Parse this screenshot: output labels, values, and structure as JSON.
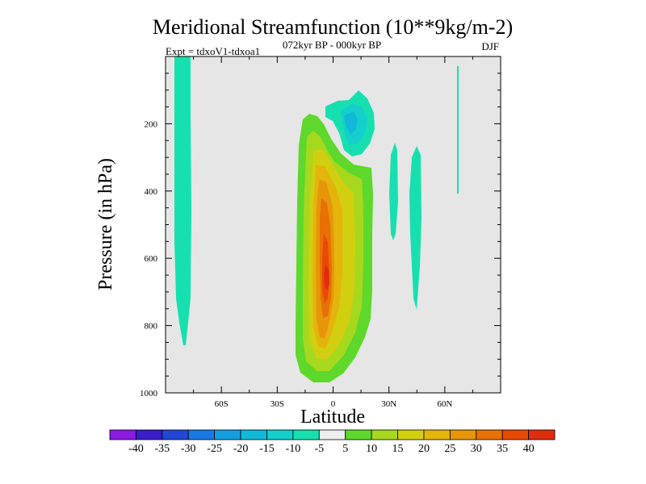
{
  "chart_data": {
    "type": "contour",
    "title": "Meridional Streamfunction (10**9kg/m-2)",
    "experiment": "Expt = tdxoV1-tdxoa1",
    "period": "072kyr BP - 000kyr BP",
    "season": "DJF",
    "xlabel": "Latitude",
    "ylabel": "Pressure (in hPa)",
    "xlim": [
      -90,
      90
    ],
    "ylim": [
      1000,
      0
    ],
    "x_ticks": [
      {
        "value": -60,
        "label": "60S"
      },
      {
        "value": -30,
        "label": "30S"
      },
      {
        "value": 0,
        "label": "0"
      },
      {
        "value": 30,
        "label": "30N"
      },
      {
        "value": 60,
        "label": "60N"
      }
    ],
    "y_ticks": [
      {
        "value": 200,
        "label": "200"
      },
      {
        "value": 400,
        "label": "400"
      },
      {
        "value": 600,
        "label": "600"
      },
      {
        "value": 800,
        "label": "800"
      },
      {
        "value": 1000,
        "label": "1000"
      }
    ],
    "levels": [
      {
        "label": "-40",
        "color": "#8a1ae0"
      },
      {
        "label": "-35",
        "color": "#3a1cc8"
      },
      {
        "label": "-30",
        "color": "#2246d6"
      },
      {
        "label": "-25",
        "color": "#1a78e6"
      },
      {
        "label": "-20",
        "color": "#159fe0"
      },
      {
        "label": "-15",
        "color": "#12b8d8"
      },
      {
        "label": "-10",
        "color": "#14cfcb"
      },
      {
        "label": "-5",
        "color": "#17e0b0"
      },
      {
        "label": "5",
        "color": "#eeeeee"
      },
      {
        "label": "10",
        "color": "#5ed82a"
      },
      {
        "label": "15",
        "color": "#a6d81e"
      },
      {
        "label": "20",
        "color": "#d2cf10"
      },
      {
        "label": "25",
        "color": "#e4b40c"
      },
      {
        "label": "30",
        "color": "#e69608"
      },
      {
        "label": "35",
        "color": "#e87004"
      },
      {
        "label": "40",
        "color": "#e84a06"
      },
      {
        "label": "",
        "color": "#de2e0e"
      }
    ],
    "features": [
      {
        "name": "southern-polar-cell",
        "lat_range": [
          -80,
          -74
        ],
        "p_range": [
          0,
          850
        ],
        "min_value": -10
      },
      {
        "name": "upper-negative-cell",
        "lat_range": [
          -3,
          16
        ],
        "p_range": [
          60,
          290
        ],
        "min_value": -20
      },
      {
        "name": "main-positive-cell",
        "lat_range": [
          -17,
          20
        ],
        "p_range": [
          165,
          975
        ],
        "max_value": 40
      },
      {
        "name": "nh-negative-strip-30n",
        "lat_range": [
          29,
          35
        ],
        "p_range": [
          265,
          555
        ],
        "min_value": -10
      },
      {
        "name": "nh-negative-strip-45n",
        "lat_range": [
          40,
          45
        ],
        "p_range": [
          265,
          760
        ],
        "min_value": -10
      },
      {
        "name": "nh-negative-line-67n",
        "lat_range": [
          66.5,
          67.5
        ],
        "p_range": [
          0,
          410
        ],
        "min_value": -10
      }
    ]
  }
}
